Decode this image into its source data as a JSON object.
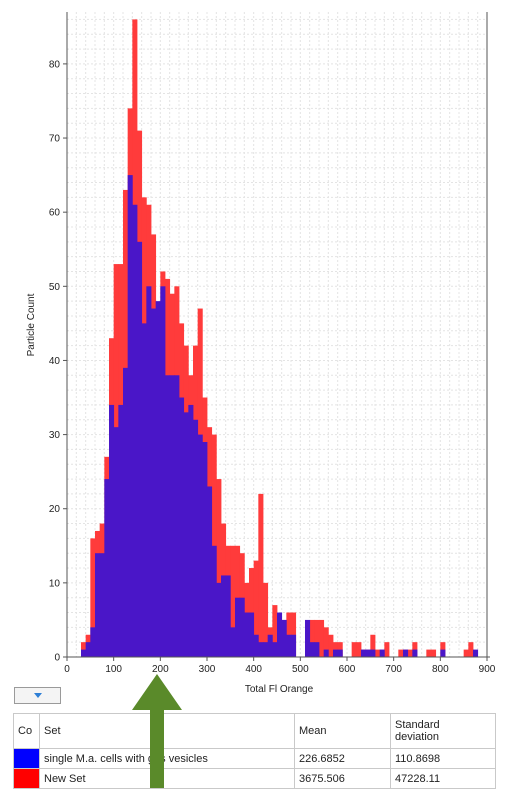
{
  "chart_data": {
    "type": "bar",
    "xlabel": "Total  Fl Orange",
    "ylabel": "Particle Count",
    "xlim": [
      0,
      900
    ],
    "ylim": [
      0,
      87
    ],
    "x_ticks": [
      "0",
      "100",
      "200",
      "300",
      "400",
      "500",
      "600",
      "700",
      "800",
      "900"
    ],
    "y_ticks": [
      "0",
      "10",
      "20",
      "30",
      "40",
      "50",
      "60",
      "70",
      "80"
    ],
    "bin_width": 10,
    "grid": true,
    "series": [
      {
        "name": "New Set",
        "color": "#ff3b3b",
        "bin_starts": [
          30,
          40,
          50,
          60,
          70,
          80,
          90,
          100,
          110,
          120,
          130,
          140,
          150,
          160,
          170,
          180,
          190,
          200,
          210,
          220,
          230,
          240,
          250,
          260,
          270,
          280,
          290,
          300,
          310,
          320,
          330,
          340,
          350,
          360,
          370,
          380,
          390,
          400,
          410,
          420,
          430,
          440,
          450,
          460,
          470,
          480,
          490,
          500,
          510,
          520,
          530,
          540,
          550,
          560,
          570,
          580,
          590,
          600,
          610,
          620,
          630,
          640,
          650,
          660,
          670,
          680,
          690,
          700,
          710,
          720,
          730,
          740,
          750,
          760,
          770,
          780,
          790,
          800,
          810,
          820,
          830,
          840,
          850,
          860,
          870
        ],
        "values": [
          2,
          3,
          16,
          17,
          18,
          27,
          43,
          53,
          53,
          63,
          74,
          86,
          71,
          62,
          61,
          57,
          46,
          52,
          51,
          49,
          50,
          45,
          42,
          38,
          42,
          47,
          35,
          31,
          30,
          24,
          18,
          15,
          15,
          15,
          14,
          10,
          12,
          13,
          22,
          10,
          4,
          7,
          4,
          5,
          6,
          6,
          0,
          0,
          4,
          5,
          5,
          5,
          4,
          3,
          2,
          2,
          0,
          0,
          2,
          2,
          1,
          1,
          3,
          1,
          1,
          2,
          0,
          0,
          1,
          1,
          1,
          2,
          0,
          0,
          1,
          1,
          0,
          2,
          0,
          0,
          0,
          0,
          1,
          2,
          0
        ]
      },
      {
        "name": "single M.a. cells with gas vesicles",
        "color": "#4a16c8",
        "bin_starts": [
          30,
          40,
          50,
          60,
          70,
          80,
          90,
          100,
          110,
          120,
          130,
          140,
          150,
          160,
          170,
          180,
          190,
          200,
          210,
          220,
          230,
          240,
          250,
          260,
          270,
          280,
          290,
          300,
          310,
          320,
          330,
          340,
          350,
          360,
          370,
          380,
          390,
          400,
          410,
          420,
          430,
          440,
          450,
          460,
          470,
          480,
          490,
          500,
          510,
          520,
          530,
          540,
          550,
          560,
          570,
          580,
          590,
          600,
          610,
          620,
          630,
          640,
          650,
          660,
          670,
          680,
          690,
          700,
          710,
          720,
          730,
          740,
          750,
          760,
          770,
          780,
          790,
          800,
          810,
          820,
          830,
          840,
          850,
          860,
          870
        ],
        "values": [
          1,
          2,
          4,
          14,
          14,
          24,
          34,
          31,
          34,
          39,
          65,
          61,
          56,
          45,
          50,
          47,
          48,
          50,
          38,
          38,
          38,
          35,
          33,
          34,
          32,
          30,
          29,
          23,
          15,
          10,
          11,
          11,
          4,
          8,
          8,
          6,
          6,
          3,
          2,
          2,
          3,
          2,
          6,
          5,
          3,
          3,
          0,
          0,
          5,
          2,
          2,
          0,
          1,
          0,
          1,
          1,
          0,
          0,
          0,
          0,
          1,
          1,
          1,
          0,
          1,
          0,
          0,
          0,
          0,
          1,
          0,
          1,
          0,
          0,
          0,
          0,
          0,
          1,
          0,
          0,
          0,
          0,
          0,
          0,
          1
        ]
      }
    ]
  },
  "legend": {
    "columns": {
      "color": "Co",
      "set": "Set",
      "mean": "Mean",
      "stddev_line1": "Standard",
      "stddev_line2": "deviation"
    },
    "rows": [
      {
        "color": "#0000ff",
        "set": "single M.a. cells with gas vesicles",
        "mean": "226.6852",
        "stddev": "110.8698"
      },
      {
        "color": "#ff0000",
        "set": "New Set",
        "mean": "3675.506",
        "stddev": "47228.11"
      }
    ]
  },
  "annotation_arrow_color": "#5a8a2a"
}
